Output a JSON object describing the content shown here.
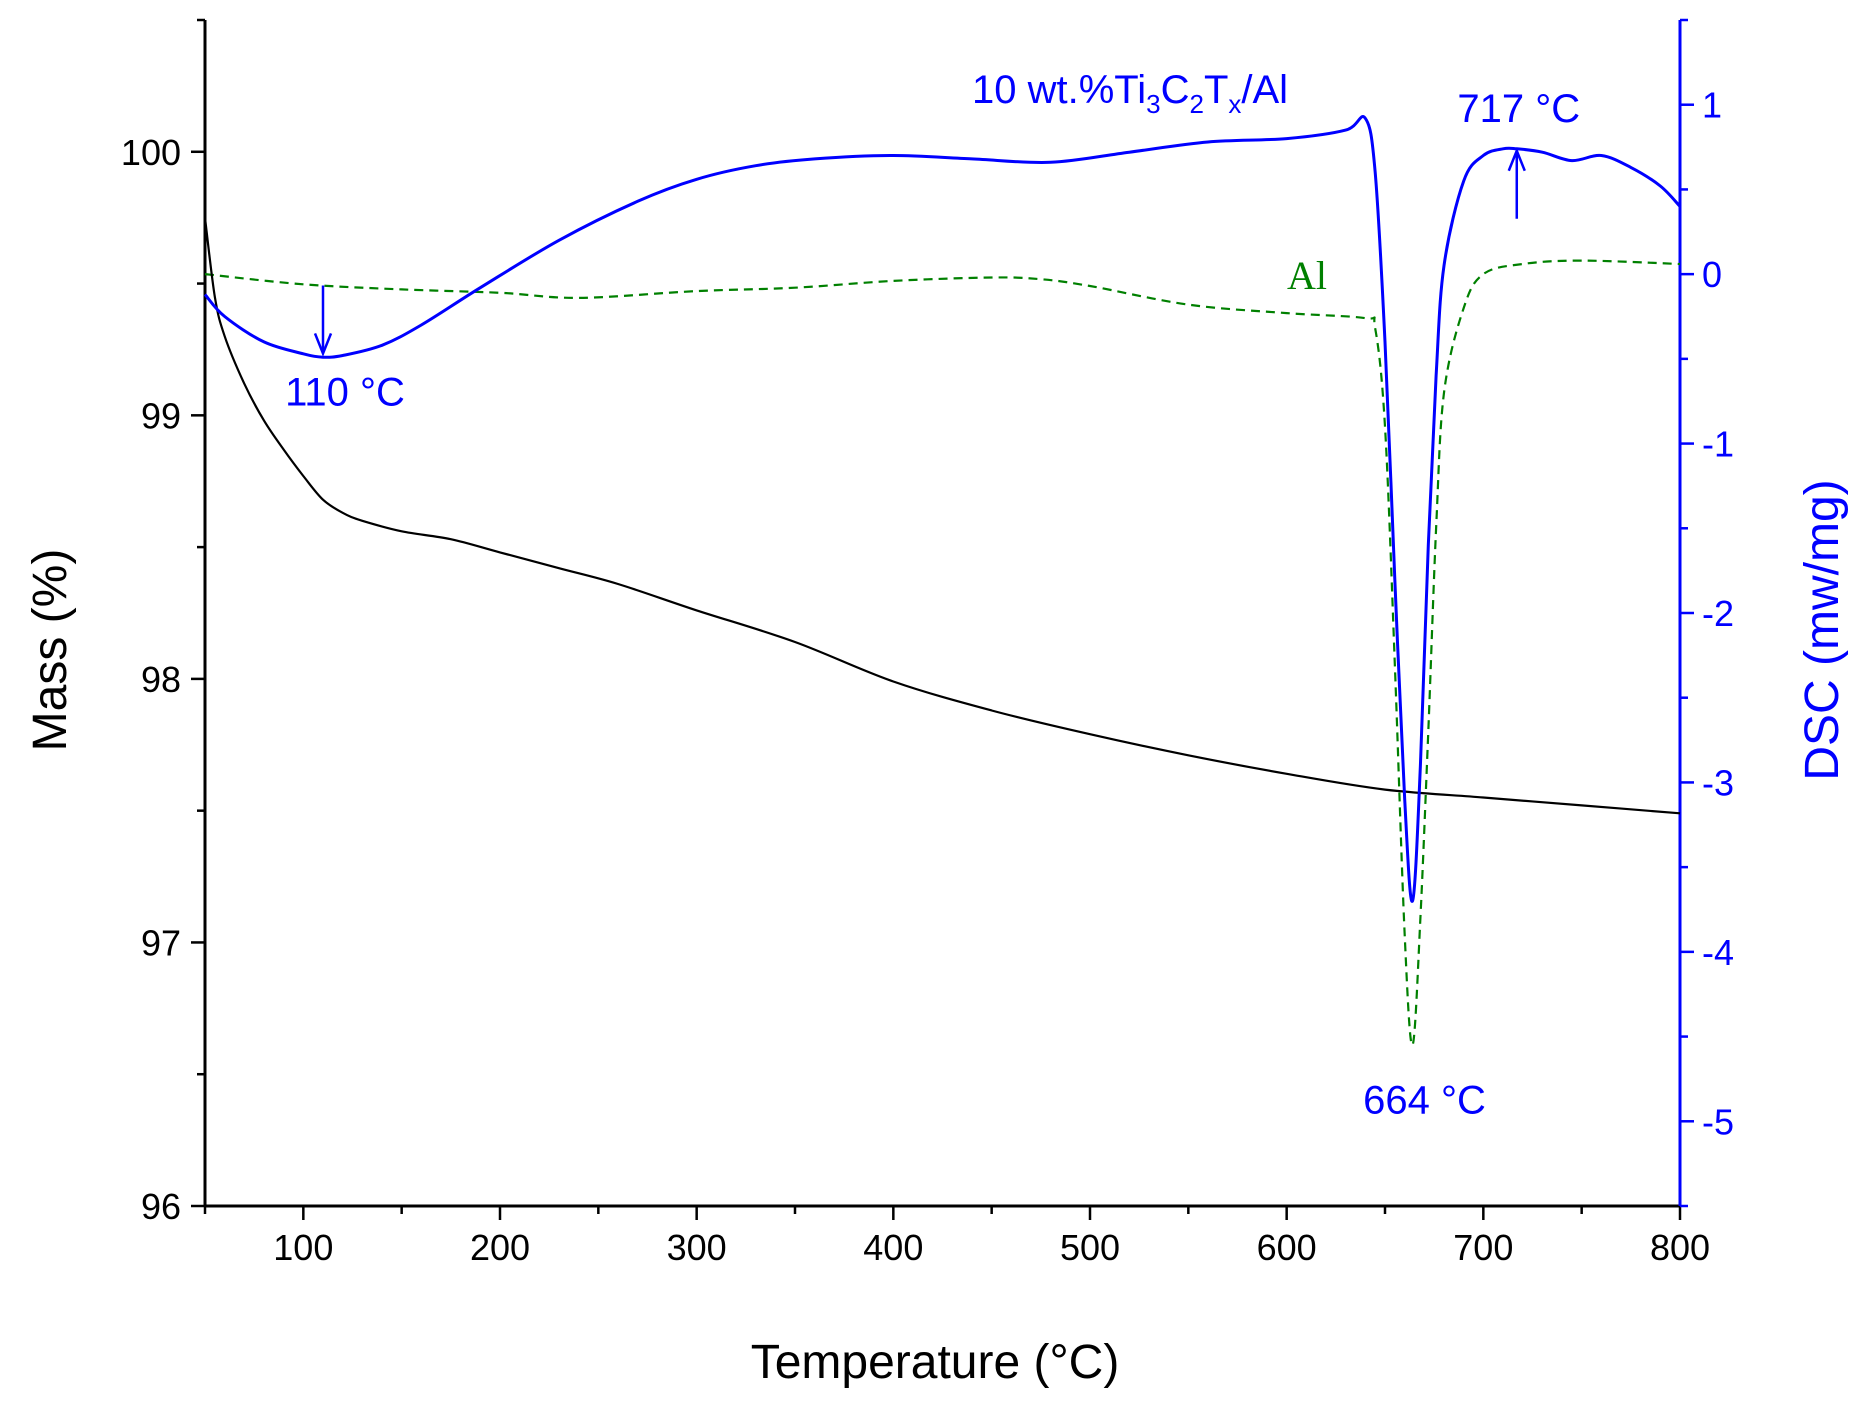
{
  "chart_data": {
    "type": "line",
    "title": "",
    "xlabel": "Temperature (°C)",
    "ylabel": "Mass (%)",
    "y2label": "DSC (mw/mg)",
    "xlim": [
      50,
      800
    ],
    "ylim": [
      96,
      100.5
    ],
    "y2lim": [
      -5.5,
      1.5
    ],
    "xticks": [
      100,
      200,
      300,
      400,
      500,
      600,
      700,
      800
    ],
    "yticks": [
      96,
      97,
      98,
      99,
      100
    ],
    "y2ticks": [
      -5,
      -4,
      -3,
      -2,
      -1,
      0,
      1
    ],
    "colors": {
      "mass": "#000000",
      "dsc": "#0000ff",
      "al": "#008000",
      "axis": "#000000",
      "axis_right": "#0000ff"
    },
    "series": [
      {
        "name": "Mass",
        "axis": "left",
        "x": [
          50,
          55,
          60,
          70,
          80,
          90,
          100,
          110,
          120,
          130,
          150,
          175,
          200,
          230,
          260,
          300,
          350,
          400,
          450,
          500,
          550,
          600,
          650,
          700,
          750,
          800
        ],
        "y": [
          99.75,
          99.45,
          99.3,
          99.12,
          98.98,
          98.87,
          98.77,
          98.68,
          98.63,
          98.6,
          98.56,
          98.53,
          98.48,
          98.42,
          98.36,
          98.26,
          98.14,
          97.99,
          97.88,
          97.79,
          97.71,
          97.64,
          97.58,
          97.55,
          97.52,
          97.49
        ]
      },
      {
        "name": "10 wt.%Ti3C2Tx/Al",
        "axis": "right",
        "x": [
          50,
          60,
          80,
          100,
          110,
          120,
          140,
          160,
          190,
          230,
          270,
          300,
          330,
          360,
          400,
          440,
          480,
          520,
          560,
          600,
          630,
          640,
          645,
          650,
          655,
          660,
          664,
          668,
          672,
          676,
          680,
          690,
          700,
          710,
          717,
          730,
          745,
          760,
          775,
          790,
          800
        ],
        "y": [
          -0.12,
          -0.25,
          -0.4,
          -0.47,
          -0.49,
          -0.48,
          -0.42,
          -0.3,
          -0.08,
          0.2,
          0.43,
          0.56,
          0.64,
          0.68,
          0.7,
          0.68,
          0.66,
          0.72,
          0.78,
          0.8,
          0.85,
          0.92,
          0.6,
          -0.4,
          -1.8,
          -3.1,
          -3.7,
          -2.9,
          -1.6,
          -0.6,
          0.05,
          0.55,
          0.7,
          0.74,
          0.74,
          0.72,
          0.67,
          0.7,
          0.63,
          0.52,
          0.4
        ]
      },
      {
        "name": "Al",
        "axis": "right",
        "x": [
          50,
          100,
          150,
          200,
          240,
          300,
          350,
          400,
          450,
          475,
          500,
          550,
          600,
          640,
          645,
          650,
          655,
          660,
          664,
          668,
          672,
          676,
          680,
          690,
          700,
          720,
          750,
          800
        ],
        "y": [
          0.0,
          -0.06,
          -0.09,
          -0.11,
          -0.14,
          -0.1,
          -0.08,
          -0.04,
          -0.02,
          -0.03,
          -0.07,
          -0.18,
          -0.23,
          -0.26,
          -0.32,
          -0.9,
          -2.3,
          -3.9,
          -4.55,
          -3.8,
          -2.7,
          -1.5,
          -0.7,
          -0.2,
          0.0,
          0.06,
          0.08,
          0.06
        ]
      }
    ],
    "annotations": [
      {
        "text": "110 °C",
        "x": 110,
        "y2": -0.48,
        "arrow": "down"
      },
      {
        "text": "664 °C",
        "x": 664,
        "y2": -4.6,
        "arrow": "none"
      },
      {
        "text": "717 °C",
        "x": 717,
        "y2": 0.74,
        "arrow": "up"
      }
    ],
    "labels": {
      "sample": {
        "main": "10 wt.%Ti",
        "sub1": "3",
        "mid1": "C",
        "sub2": "2",
        "mid2": "T",
        "sub3": "x",
        "tail": "/Al"
      },
      "al": "Al"
    }
  }
}
